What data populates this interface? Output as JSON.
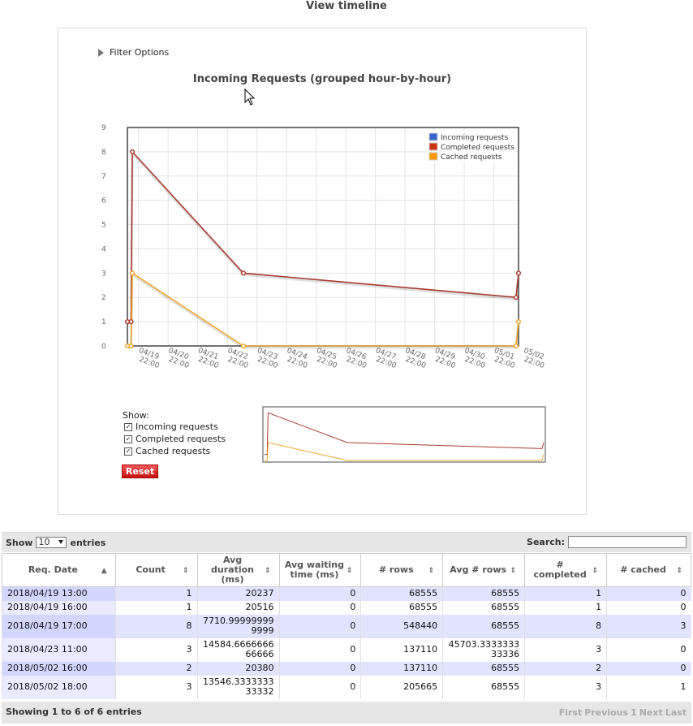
{
  "page": {
    "title": "View timeline"
  },
  "filter": {
    "label": "Filter Options"
  },
  "chart": {
    "title": "Incoming Requests (grouped hour-by-hour)",
    "legend": [
      "Incoming requests",
      "Completed requests",
      "Cached requests"
    ],
    "colors": {
      "incoming": "#3366cc",
      "completed": "#cc3311",
      "cached": "#ff9900",
      "completed_line": "#a83b2e",
      "cached_line": "#f0a830"
    }
  },
  "chart_data": {
    "type": "line",
    "x_tick_labels": [
      "04/19 22:00",
      "04/20 22:00",
      "04/21 22:00",
      "04/22 22:00",
      "04/23 22:00",
      "04/24 22:00",
      "04/25 22:00",
      "04/26 22:00",
      "04/27 22:00",
      "04/28 22:00",
      "04/29 22:00",
      "04/30 22:00",
      "05/01 22:00",
      "05/02 22:00"
    ],
    "y_ticks": [
      0,
      1,
      2,
      3,
      4,
      5,
      6,
      7,
      8,
      9
    ],
    "ylim": [
      0,
      9
    ],
    "series": [
      {
        "name": "Incoming requests",
        "points": [
          [
            "2018/04/19 13:00",
            1
          ],
          [
            "2018/04/19 16:00",
            1
          ],
          [
            "2018/04/19 17:00",
            8
          ],
          [
            "2018/04/23 11:00",
            3
          ],
          [
            "2018/05/02 16:00",
            2
          ],
          [
            "2018/05/02 18:00",
            3
          ]
        ]
      },
      {
        "name": "Completed requests",
        "points": [
          [
            "2018/04/19 13:00",
            1
          ],
          [
            "2018/04/19 16:00",
            1
          ],
          [
            "2018/04/19 17:00",
            8
          ],
          [
            "2018/04/23 11:00",
            3
          ],
          [
            "2018/05/02 16:00",
            2
          ],
          [
            "2018/05/02 18:00",
            3
          ]
        ]
      },
      {
        "name": "Cached requests",
        "points": [
          [
            "2018/04/19 13:00",
            0
          ],
          [
            "2018/04/19 16:00",
            0
          ],
          [
            "2018/04/19 17:00",
            3
          ],
          [
            "2018/04/23 11:00",
            0
          ],
          [
            "2018/05/02 16:00",
            0
          ],
          [
            "2018/05/02 18:00",
            1
          ]
        ]
      }
    ]
  },
  "show": {
    "label": "Show:",
    "items": [
      {
        "label": "Incoming requests",
        "checked": true
      },
      {
        "label": "Completed requests",
        "checked": true
      },
      {
        "label": "Cached requests",
        "checked": true
      }
    ],
    "reset": "Reset"
  },
  "table": {
    "show_label": "Show",
    "page_size": "10",
    "entries_label": "entries",
    "search_label": "Search:",
    "columns": [
      "Req. Date",
      "Count",
      "Avg duration (ms)",
      "Avg waiting time (ms)",
      "# rows",
      "Avg # rows",
      "# completed",
      "# cached"
    ],
    "rows": [
      [
        "2018/04/19 13:00",
        "1",
        "20237",
        "0",
        "68555",
        "68555",
        "1",
        "0"
      ],
      [
        "2018/04/19 16:00",
        "1",
        "20516",
        "0",
        "68555",
        "68555",
        "1",
        "0"
      ],
      [
        "2018/04/19 17:00",
        "8",
        "7710.99999999 9999",
        "0",
        "548440",
        "68555",
        "8",
        "3"
      ],
      [
        "2018/04/23 11:00",
        "3",
        "14584.6666666 66666",
        "0",
        "137110",
        "45703.3333333 33336",
        "3",
        "0"
      ],
      [
        "2018/05/02 16:00",
        "2",
        "20380",
        "0",
        "137110",
        "68555",
        "2",
        "0"
      ],
      [
        "2018/05/02 18:00",
        "3",
        "13546.3333333 33332",
        "0",
        "205665",
        "68555",
        "3",
        "1"
      ]
    ],
    "info": "Showing 1 to 6 of 6 entries",
    "pager": [
      "First",
      "Previous",
      "1",
      "Next",
      "Last"
    ]
  }
}
